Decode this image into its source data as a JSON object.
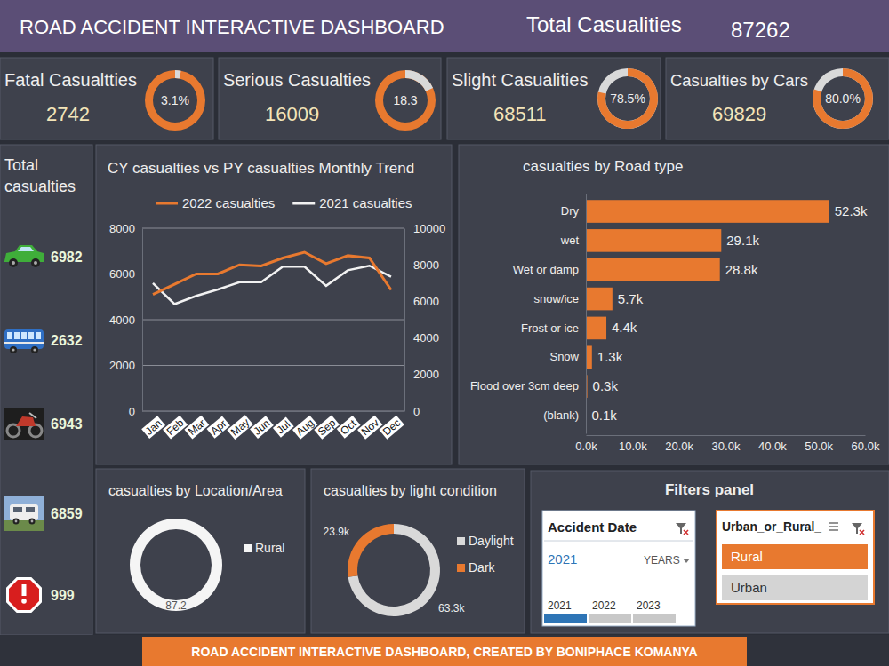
{
  "header": {
    "title": "ROAD ACCIDENT INTERACTIVE DASHBOARD",
    "total_label": "Total Casualities",
    "total_value": 87262
  },
  "kpis": [
    {
      "title": "Fatal Casualtties",
      "value": 2742,
      "percent": 3.1,
      "percent_label": "3.1%",
      "color": "#d9d9d9"
    },
    {
      "title": "Serious Casualties",
      "value": 16009,
      "percent": 18.3,
      "color": "#d9d9d9"
    },
    {
      "title": "Slight Casualities",
      "value": 68511,
      "percent": 78.5,
      "percent_label": "78.5%",
      "color": "#e8792f"
    },
    {
      "title": "Casualties by Cars",
      "value": 69829,
      "percent": 80.0,
      "percent_label": "80.0%",
      "color": "#e8792f"
    }
  ],
  "vehicle_panel": {
    "title": "Total casualties",
    "values": [
      6982,
      2632,
      6943,
      6859,
      999
    ]
  },
  "chart_data": [
    {
      "type": "line",
      "title": "CY casualties vs PY casualties Monthly Trend",
      "categories": [
        "Jan",
        "Feb",
        "Mar",
        "Apr",
        "May",
        "Jun",
        "Jul",
        "Aug",
        "Sep",
        "Oct",
        "Nov",
        "Dec"
      ],
      "series": [
        {
          "name": "2022 casualties",
          "color": "#e8792f",
          "values": [
            5100,
            5550,
            6000,
            6000,
            6400,
            6350,
            6700,
            6950,
            6450,
            6800,
            6700,
            5300
          ]
        },
        {
          "name": "2021 casualties",
          "color": "#f2f2f2",
          "axis": "y2",
          "values": [
            7000,
            5850,
            6300,
            6650,
            7050,
            7050,
            7900,
            7900,
            6850,
            7700,
            7950,
            7350
          ]
        }
      ],
      "ylim": [
        0,
        8000
      ],
      "yticks": [
        0,
        2000,
        4000,
        6000,
        8000
      ],
      "y2lim": [
        0,
        10000
      ],
      "y2ticks": [
        0,
        2000,
        4000,
        6000,
        8000,
        10000
      ],
      "grid": true,
      "legend": "top"
    },
    {
      "type": "bar",
      "orientation": "horizontal",
      "title": "casualties by Road type",
      "categories": [
        "Dry",
        "wet",
        "Wet or damp",
        "snow/ice",
        "Frost or ice",
        "Snow",
        "Flood over 3cm deep",
        "(blank)"
      ],
      "values": [
        52300,
        29100,
        28800,
        5700,
        4400,
        1300,
        300,
        100
      ],
      "value_labels": [
        "52.3k",
        "29.1k",
        "28.8k",
        "5.7k",
        "4.4k",
        "1.3k",
        "0.3k",
        "0.1k"
      ],
      "color": "#e8792f",
      "data_labels": true,
      "xlim": [
        0,
        60000
      ],
      "xticks": [
        {
          "value": 0,
          "label": "0.0k"
        },
        {
          "value": 10000,
          "label": "10.0k"
        },
        {
          "value": 20000,
          "label": "20.0k"
        },
        {
          "value": 30000,
          "label": "30.0k"
        },
        {
          "value": 40000,
          "label": "40.0k"
        },
        {
          "value": 50000,
          "label": "50.0k"
        },
        {
          "value": 60000,
          "label": "60.0k"
        }
      ]
    },
    {
      "type": "donut",
      "title": "casualties by Location/Area",
      "categories": [
        "Rural"
      ],
      "values": [
        87.2
      ],
      "colors": [
        "#f5f5f5"
      ],
      "data_labels": true,
      "legend": "right"
    },
    {
      "type": "donut",
      "title": "casualties by light condition",
      "categories": [
        "Daylight",
        "Dark"
      ],
      "values": [
        63300,
        23900
      ],
      "value_labels": [
        "63.3k",
        "23.9k"
      ],
      "colors": [
        "#d9d9d9",
        "#e8792f"
      ],
      "data_labels": true,
      "legend": "right"
    }
  ],
  "filters": {
    "title": "Filters panel",
    "date_slicer": {
      "title": "Accident Date",
      "selected": "2021",
      "period": "YEARS",
      "timeline": [
        "2021",
        "2022",
        "2023"
      ]
    },
    "area_slicer": {
      "title": "Urban_or_Rural_",
      "options": [
        "Rural",
        "Urban"
      ]
    }
  },
  "footer": "ROAD ACCIDENT INTERACTIVE DASHBOARD, CREATED BY BONIPHACE KOMANYA"
}
